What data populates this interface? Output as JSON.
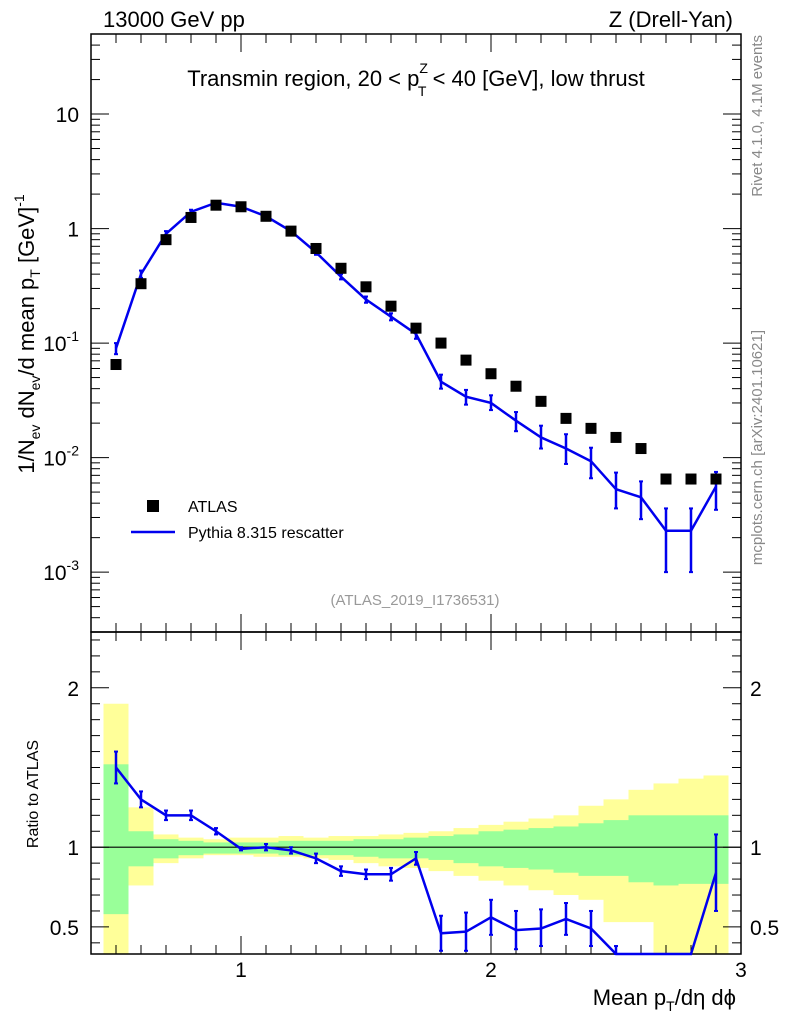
{
  "chart_data": {
    "type": "line",
    "header_left": "13000 GeV pp",
    "header_right": "Z (Drell-Yan)",
    "title_prefix": "Transmin region, 20 < p",
    "title_sup": "Z",
    "title_sub": "T",
    "title_suffix": " < 40 [GeV], low thrust",
    "ylabel": {
      "parts": [
        "1/N",
        "ev",
        " dN",
        "ev",
        "/d mean p",
        "T",
        " [GeV]",
        "-1"
      ]
    },
    "ratio_ylabel": "Ratio to ATLAS",
    "xlabel": {
      "parts": [
        "Mean p",
        "T",
        "/dη dϕ"
      ]
    },
    "analysis_id": "(ATLAS_2019_I1736531)",
    "side_top": "Rivet 4.1.0,  4.1M events",
    "side_bottom": "mcplots.cern.ch [arXiv:2401.10621]",
    "xlim": [
      0.4,
      3.0
    ],
    "ylim_log": [
      0.0003,
      50
    ],
    "ratio_ylim": [
      0.33,
      2.35
    ],
    "x_tick_labels": [
      "1",
      "2",
      "3"
    ],
    "x_tick_values": [
      1,
      2,
      3
    ],
    "y_tick_labels": [
      {
        "base": "10",
        "exp": "-3",
        "value": 0.001
      },
      {
        "base": "10",
        "exp": "-2",
        "value": 0.01
      },
      {
        "base": "10",
        "exp": "-1",
        "value": 0.1
      },
      {
        "base": "1",
        "exp": "",
        "value": 1
      },
      {
        "base": "10",
        "exp": "",
        "value": 10
      }
    ],
    "ratio_tick_labels": [
      "0.5",
      "1",
      "2"
    ],
    "ratio_tick_values": [
      0.5,
      1,
      2
    ],
    "legend": [
      {
        "name": "ATLAS",
        "marker": "square"
      },
      {
        "name": "Pythia 8.315 rescatter",
        "marker": "line"
      }
    ],
    "bin_edges": [
      0.45,
      0.55,
      0.65,
      0.75,
      0.85,
      0.95,
      1.05,
      1.15,
      1.25,
      1.35,
      1.45,
      1.55,
      1.65,
      1.75,
      1.85,
      1.95,
      2.05,
      2.15,
      2.25,
      2.35,
      2.45,
      2.55,
      2.65,
      2.75,
      2.85,
      2.95
    ],
    "x": [
      0.5,
      0.6,
      0.7,
      0.8,
      0.9,
      1.0,
      1.1,
      1.2,
      1.3,
      1.4,
      1.5,
      1.6,
      1.7,
      1.8,
      1.9,
      2.0,
      2.1,
      2.2,
      2.3,
      2.4,
      2.5,
      2.6,
      2.7,
      2.8,
      2.9
    ],
    "data_values": [
      0.065,
      0.33,
      0.8,
      1.25,
      1.6,
      1.55,
      1.28,
      0.95,
      0.67,
      0.45,
      0.31,
      0.21,
      0.135,
      0.1,
      0.071,
      0.054,
      0.042,
      0.031,
      0.022,
      0.018,
      0.015,
      0.012,
      0.0065,
      0.0065,
      0.0065
    ],
    "mc_values": [
      0.09,
      0.4,
      0.9,
      1.4,
      1.68,
      1.55,
      1.28,
      0.95,
      0.62,
      0.38,
      0.24,
      0.17,
      0.12,
      0.046,
      0.034,
      0.03,
      0.021,
      0.015,
      0.012,
      0.0093,
      0.0053,
      0.0045,
      0.0023,
      0.0023,
      0.0056
    ],
    "mc_err_low": [
      0.08,
      0.37,
      0.86,
      1.34,
      1.63,
      1.51,
      1.24,
      0.92,
      0.59,
      0.36,
      0.225,
      0.158,
      0.109,
      0.04,
      0.029,
      0.026,
      0.017,
      0.012,
      0.0088,
      0.0066,
      0.0036,
      0.0029,
      0.001,
      0.001,
      0.0035
    ],
    "mc_err_high": [
      0.1,
      0.43,
      0.95,
      1.46,
      1.73,
      1.6,
      1.32,
      0.98,
      0.65,
      0.4,
      0.255,
      0.182,
      0.131,
      0.053,
      0.039,
      0.035,
      0.025,
      0.019,
      0.016,
      0.0122,
      0.0074,
      0.0062,
      0.0036,
      0.0036,
      0.0075
    ],
    "ratio_values": [
      1.5,
      1.3,
      1.2,
      1.2,
      1.1,
      0.99,
      1.0,
      0.98,
      0.93,
      0.85,
      0.83,
      0.83,
      0.93,
      0.46,
      0.47,
      0.56,
      0.48,
      0.49,
      0.55,
      0.49,
      0.33,
      0.3,
      0.3,
      0.3,
      0.84
    ],
    "ratio_err_low": [
      1.4,
      1.25,
      1.17,
      1.17,
      1.08,
      0.98,
      0.98,
      0.96,
      0.9,
      0.82,
      0.8,
      0.79,
      0.89,
      0.35,
      0.35,
      0.45,
      0.36,
      0.38,
      0.45,
      0.38,
      0.3,
      0.3,
      0.3,
      0.3,
      0.6
    ],
    "ratio_err_high": [
      1.6,
      1.35,
      1.23,
      1.23,
      1.12,
      1.0,
      1.02,
      1.0,
      0.96,
      0.88,
      0.86,
      0.87,
      0.97,
      0.57,
      0.59,
      0.67,
      0.6,
      0.61,
      0.65,
      0.6,
      0.38,
      0.3,
      0.3,
      0.3,
      1.08
    ],
    "band_green_low": [
      0.58,
      0.88,
      0.93,
      0.95,
      0.96,
      0.96,
      0.96,
      0.95,
      0.95,
      0.95,
      0.94,
      0.93,
      0.93,
      0.92,
      0.9,
      0.88,
      0.87,
      0.86,
      0.84,
      0.82,
      0.82,
      0.78,
      0.76,
      0.77,
      0.77
    ],
    "band_green_high": [
      1.52,
      1.1,
      1.05,
      1.04,
      1.03,
      1.03,
      1.03,
      1.04,
      1.04,
      1.04,
      1.05,
      1.05,
      1.06,
      1.07,
      1.08,
      1.1,
      1.11,
      1.12,
      1.13,
      1.15,
      1.17,
      1.2,
      1.2,
      1.2,
      1.2
    ],
    "band_yellow_low": [
      0.3,
      0.76,
      0.9,
      0.93,
      0.95,
      0.95,
      0.94,
      0.94,
      0.93,
      0.92,
      0.9,
      0.88,
      0.87,
      0.85,
      0.82,
      0.79,
      0.76,
      0.73,
      0.7,
      0.67,
      0.53,
      0.53,
      0.33,
      0.33,
      0.33
    ],
    "band_yellow_high": [
      1.9,
      1.25,
      1.08,
      1.06,
      1.05,
      1.06,
      1.06,
      1.07,
      1.06,
      1.07,
      1.07,
      1.08,
      1.09,
      1.1,
      1.12,
      1.14,
      1.16,
      1.18,
      1.2,
      1.26,
      1.3,
      1.36,
      1.4,
      1.43,
      1.45
    ],
    "colors": {
      "mc": "#0000ee",
      "data": "#000000",
      "band_green": "#99ff99",
      "band_yellow": "#ffff99",
      "side_text": "#888888"
    }
  }
}
